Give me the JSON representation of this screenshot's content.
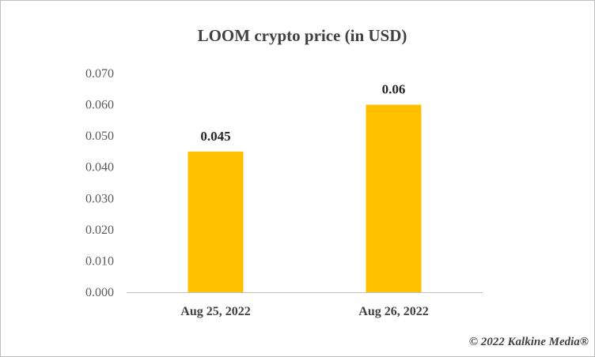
{
  "chart_data": {
    "type": "bar",
    "title": "LOOM crypto price (in USD)",
    "categories": [
      "Aug 25, 2022",
      "Aug 26, 2022"
    ],
    "values": [
      0.045,
      0.06
    ],
    "data_labels": [
      "0.045",
      "0.06"
    ],
    "yticks": [
      "0.000",
      "0.010",
      "0.020",
      "0.030",
      "0.040",
      "0.050",
      "0.060",
      "0.070"
    ],
    "ylim": [
      0,
      0.07
    ],
    "grid": false,
    "legend": "none",
    "bar_color": "#FFC000"
  },
  "footer": {
    "copyright": "© 2022 Kalkine Media®"
  }
}
